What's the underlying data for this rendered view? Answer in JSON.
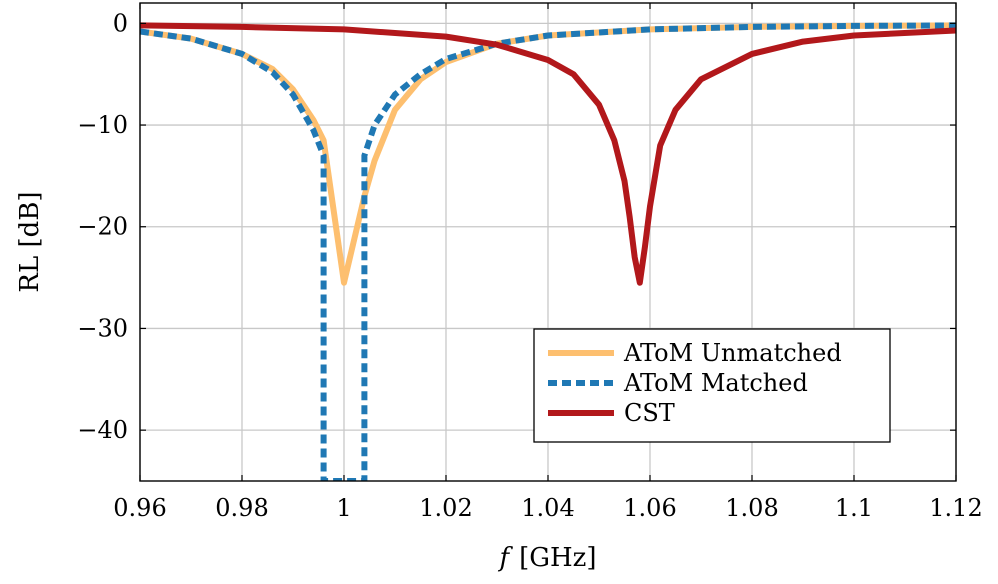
{
  "chart_data": {
    "type": "line",
    "title": "",
    "xlabel_var": "f",
    "xlabel_unit": "[GHz]",
    "ylabel": "RL [dB]",
    "xlim": [
      0.96,
      1.12
    ],
    "ylim": [
      -45,
      2
    ],
    "grid": true,
    "legend_position": "bottom-right",
    "x_ticks": [
      0.96,
      0.98,
      1.0,
      1.02,
      1.04,
      1.06,
      1.08,
      1.1,
      1.12
    ],
    "x_tick_labels": [
      "0.96",
      "0.98",
      "1",
      "1.02",
      "1.04",
      "1.06",
      "1.08",
      "1.1",
      "1.12"
    ],
    "y_ticks": [
      0,
      -10,
      -20,
      -30,
      -40
    ],
    "y_tick_labels": [
      "0",
      "−10",
      "−20",
      "−30",
      "−40"
    ],
    "series": [
      {
        "name": "AToM Unmatched",
        "color": "#fdbf6f",
        "style": "solid",
        "x": [
          0.96,
          0.97,
          0.98,
          0.986,
          0.99,
          0.994,
          0.996,
          1.0,
          1.004,
          1.006,
          1.01,
          1.015,
          1.02,
          1.03,
          1.04,
          1.06,
          1.08,
          1.1,
          1.12
        ],
        "y": [
          -0.8,
          -1.5,
          -3.0,
          -4.5,
          -6.5,
          -9.5,
          -11.5,
          -25.5,
          -17.0,
          -13.5,
          -8.5,
          -5.5,
          -3.8,
          -2.0,
          -1.2,
          -0.6,
          -0.35,
          -0.25,
          -0.2
        ]
      },
      {
        "name": "AToM Matched",
        "color": "#1f78b4",
        "style": "dashed",
        "x": [
          0.96,
          0.97,
          0.98,
          0.986,
          0.99,
          0.994,
          0.996,
          0.996,
          1.004,
          1.004,
          1.006,
          1.01,
          1.015,
          1.02,
          1.03,
          1.04,
          1.06,
          1.08,
          1.1,
          1.12
        ],
        "y": [
          -0.8,
          -1.5,
          -3.0,
          -4.8,
          -7.0,
          -10.5,
          -13.0,
          -45.0,
          -45.0,
          -13.0,
          -10.0,
          -7.0,
          -5.0,
          -3.5,
          -2.0,
          -1.2,
          -0.6,
          -0.35,
          -0.25,
          -0.2
        ]
      },
      {
        "name": "CST",
        "color": "#b2181b",
        "style": "solid",
        "x": [
          0.96,
          0.98,
          1.0,
          1.02,
          1.03,
          1.04,
          1.045,
          1.05,
          1.053,
          1.055,
          1.056,
          1.057,
          1.058,
          1.059,
          1.06,
          1.062,
          1.065,
          1.07,
          1.08,
          1.09,
          1.1,
          1.12
        ],
        "y": [
          -0.2,
          -0.35,
          -0.6,
          -1.3,
          -2.1,
          -3.6,
          -5.0,
          -8.0,
          -11.5,
          -15.5,
          -19.0,
          -23.0,
          -25.5,
          -22.0,
          -18.0,
          -12.0,
          -8.5,
          -5.5,
          -3.0,
          -1.8,
          -1.2,
          -0.7
        ]
      }
    ]
  }
}
